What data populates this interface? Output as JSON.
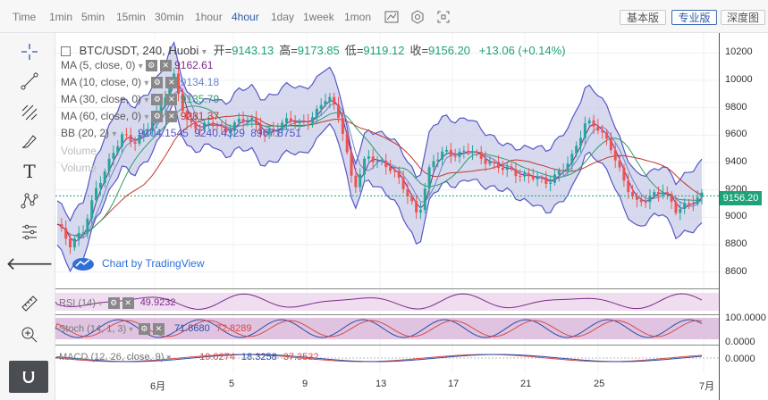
{
  "timeframes": [
    "Time",
    "1min",
    "5min",
    "15min",
    "30min",
    "1hour",
    "4hour",
    "1day",
    "1week",
    "1mon"
  ],
  "active_timeframe": "4hour",
  "toolbar_icons": [
    "candle-style-icon",
    "indicators-icon",
    "fullscreen-icon"
  ],
  "versions": [
    {
      "label": "基本版",
      "active": false
    },
    {
      "label": "专业版",
      "active": true
    },
    {
      "label": "深度图",
      "active": false
    }
  ],
  "sidebar_tools": [
    "crosshair-icon",
    "trend-line-icon",
    "fib-icon",
    "brush-icon",
    "text-icon",
    "pattern-icon",
    "measure-icon",
    "back-arrow-icon",
    "ruler-icon",
    "zoom-in-icon",
    "magnet-icon"
  ],
  "legend": {
    "title": "BTC/USDT, 240, Huobi",
    "ohlc": [
      {
        "k": "开",
        "v": "9143.13"
      },
      {
        "k": "高",
        "v": "9173.85"
      },
      {
        "k": "低",
        "v": "9119.12"
      },
      {
        "k": "收",
        "v": "9156.20"
      }
    ],
    "change": "+13.06 (+0.14%)",
    "indicators": [
      {
        "name": "MA (5, close, 0)",
        "value": "9162.61",
        "color": "#7b2a8a"
      },
      {
        "name": "MA (10, close, 0)",
        "value": "9134.18",
        "color": "#6a86c8"
      },
      {
        "name": "MA (30, close, 0)",
        "value": "9135.79",
        "color": "#2c9c6c"
      },
      {
        "name": "MA (60, close, 0)",
        "value": "9281.37",
        "color": "#c0392b"
      }
    ],
    "bb": {
      "name": "BB (20, 2)",
      "values": [
        "9104.1545",
        "9240.4329",
        "8967.8751"
      ]
    },
    "volume_labels": [
      "Volume",
      "Volume"
    ]
  },
  "attribution": "Chart by TradingView",
  "current_price": "9156.20",
  "panes": {
    "rsi": {
      "name": "RSI (14)",
      "value": "49.9232",
      "scale": []
    },
    "stoch": {
      "name": "Stoch (14, 1, 3)",
      "values": [
        "71.8680",
        "72.8289"
      ],
      "scale": [
        "100.0000",
        "0.0000"
      ]
    },
    "macd": {
      "name": "MACD (12, 26, close, 9)",
      "values": [
        "19.0274",
        "18.3258",
        "37.3532"
      ],
      "scale": [
        "0.0000"
      ]
    }
  },
  "chart_data": {
    "type": "line",
    "title": "BTC/USDT, 240, Huobi",
    "x_labels": [
      "6月",
      "5",
      "9",
      "13",
      "17",
      "21",
      "25",
      "7月"
    ],
    "ylim": [
      8500,
      10300
    ],
    "y_ticks": [
      8600,
      8800,
      9000,
      9200,
      9400,
      9600,
      9800,
      10000,
      10200
    ],
    "close_series": [
      8950,
      8800,
      8900,
      9200,
      9400,
      9600,
      9550,
      9650,
      9800,
      10050,
      9700,
      9650,
      9700,
      9620,
      9700,
      9720,
      9600,
      9650,
      9720,
      9680,
      9750,
      9900,
      9700,
      9200,
      9450,
      9400,
      9350,
      9200,
      9000,
      9400,
      9480,
      9450,
      9500,
      9420,
      9380,
      9350,
      9300,
      9300,
      9250,
      9330,
      9450,
      9700,
      9650,
      9500,
      9250,
      9100,
      9150,
      9200,
      9050,
      9100,
      9160
    ],
    "series": [
      {
        "name": "MA (5, close, 0)",
        "value": "9162.61",
        "color": "#7b2a8a"
      },
      {
        "name": "MA (10, close, 0)",
        "value": "9134.18",
        "color": "#6a86c8"
      },
      {
        "name": "MA (30, close, 0)",
        "value": "9135.79",
        "color": "#2c9c6c"
      },
      {
        "name": "MA (60, close, 0)",
        "value": "9281.37",
        "color": "#c0392b"
      },
      {
        "name": "BB (20, 2)",
        "values": [
          "9104.1545",
          "9240.4329",
          "8967.8751"
        ],
        "color": "#5557c6"
      }
    ],
    "grid": true
  },
  "colors": {
    "up": "#26a69a",
    "down": "#ef5350",
    "bb_fill": "#c9cce8",
    "bb_line": "#5557c6",
    "rsi_fill": "#f0def0",
    "stoch_fill": "#d7b4d8",
    "accent": "#2e5aa7"
  }
}
